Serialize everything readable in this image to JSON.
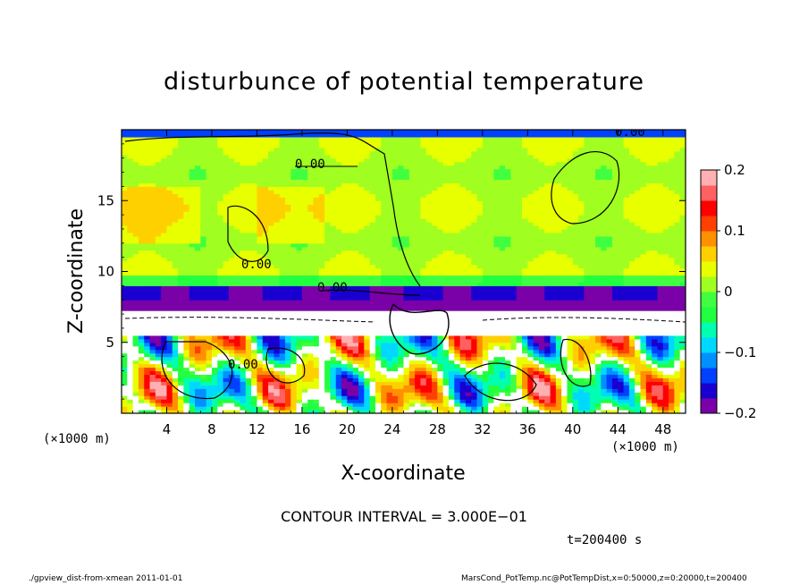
{
  "chart_data": {
    "type": "heatmap",
    "title": "disturbunce of potential temperature",
    "xlabel": "X-coordinate",
    "ylabel": "Z-coordinate",
    "x_unit": "(×1000 m)",
    "x_ticks": [
      "4",
      "8",
      "12",
      "16",
      "20",
      "24",
      "28",
      "32",
      "36",
      "40",
      "44",
      "48"
    ],
    "x_tick_values": [
      4,
      8,
      12,
      16,
      20,
      24,
      28,
      32,
      36,
      40,
      44,
      48
    ],
    "y_ticks": [
      "5",
      "10",
      "15"
    ],
    "y_tick_values": [
      5,
      10,
      15
    ],
    "xlim": [
      0,
      50
    ],
    "ylim": [
      0,
      20
    ],
    "colorbar": {
      "ticks": [
        "0.2",
        "0.1",
        "0",
        "−0.1",
        "−0.2"
      ],
      "tick_values": [
        0.2,
        0.1,
        0,
        -0.1,
        -0.2
      ],
      "range": [
        -0.2,
        0.2
      ],
      "colors": [
        "#7a00a8",
        "#1a00d0",
        "#0040ff",
        "#0090ff",
        "#00d8ff",
        "#00ffb0",
        "#20ff40",
        "#40ff40",
        "#a0ff20",
        "#e8ff00",
        "#ffd000",
        "#ff9000",
        "#ff4000",
        "#ff0000",
        "#ff6060",
        "#ffb0b0"
      ]
    },
    "contour_labels": [
      "0.00",
      "0.00",
      "0.00",
      "0.00",
      "0.00"
    ],
    "contour_interval": "CONTOUR INTERVAL = 3.000E−01",
    "time": "t=200400  s"
  },
  "footer": {
    "left": "./gpview_dist-from-xmean   2011-01-01",
    "right": "MarsCond_PotTemp.nc@PotTempDist,x=0:50000,z=0:20000,t=200400"
  }
}
